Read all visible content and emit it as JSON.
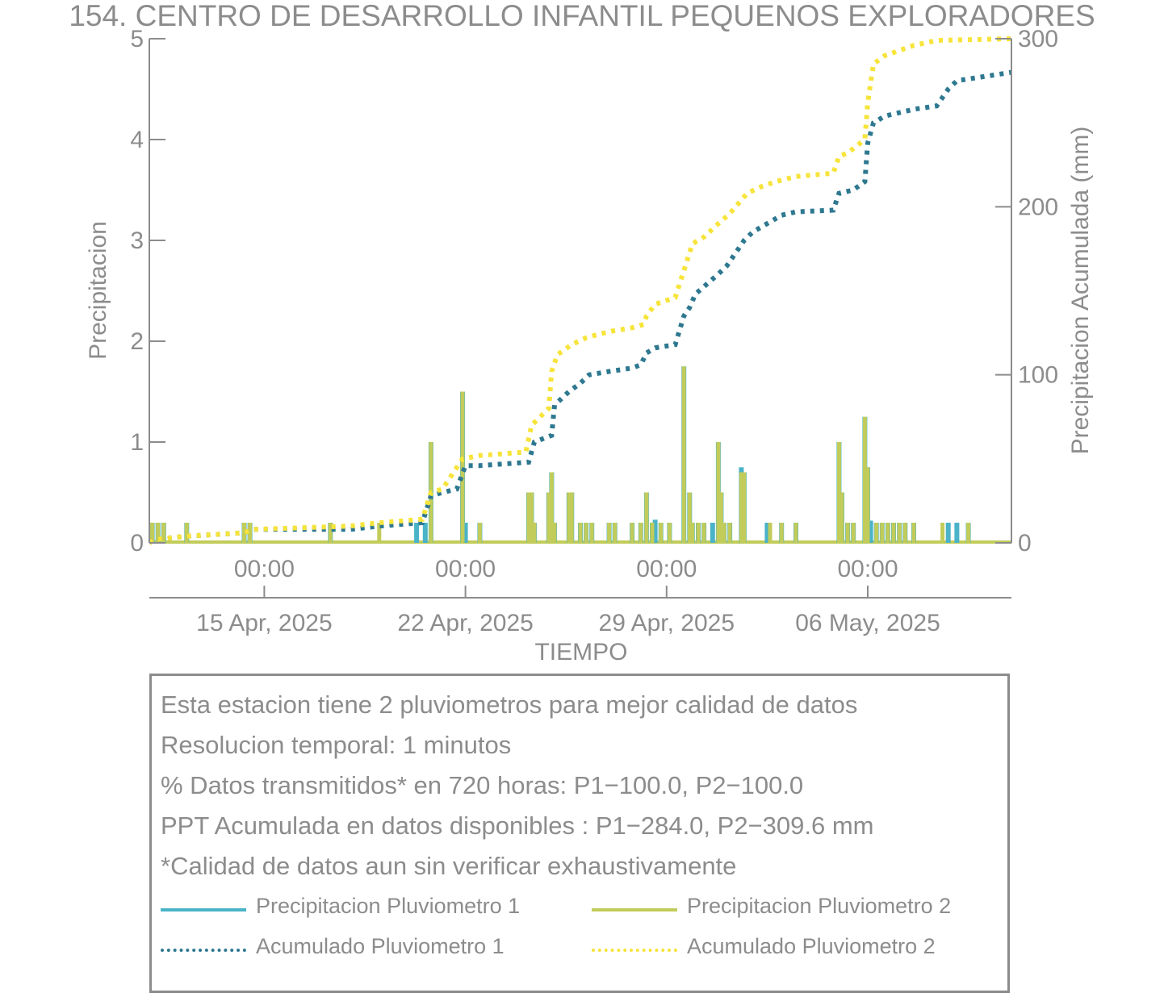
{
  "title": "154. CENTRO DE DESARROLLO INFANTIL PEQUENOS EXPLORADORES",
  "colors": {
    "p1_bar": "#4ab3c8",
    "p2_bar": "#c2cc5a",
    "p1_cum": "#2e7890",
    "p2_cum": "#f7e43a",
    "text": "#8c8c8c"
  },
  "chart_data": {
    "type": "bar",
    "title": "154. CENTRO DE DESARROLLO INFANTIL PEQUENOS EXPLORADORES",
    "xlabel": "TIEMPO",
    "ylabel": "Precipitacion",
    "y2label": "Precipitacion Acumulada (mm)",
    "ylim": [
      0,
      5
    ],
    "y2lim": [
      0,
      300
    ],
    "yticks": [
      "0",
      "1",
      "2",
      "3",
      "4",
      "5"
    ],
    "y2ticks": [
      "0",
      "100",
      "200",
      "300"
    ],
    "xlim_days": [
      0,
      30
    ],
    "time_tick_days": [
      4,
      11,
      18,
      25
    ],
    "time_ticks": [
      "00:00",
      "00:00",
      "00:00",
      "00:00"
    ],
    "date_ticks": [
      "15 Apr, 2025",
      "22 Apr, 2025",
      "29 Apr, 2025",
      "06 May, 2025"
    ],
    "grid": false,
    "series": [
      {
        "name": "Precipitacion Pluviometro 1",
        "kind": "bar",
        "axis": "left",
        "points": [
          [
            0.1,
            0.2
          ],
          [
            0.3,
            0.2
          ],
          [
            0.5,
            0.2
          ],
          [
            1.3,
            0.2
          ],
          [
            3.3,
            0.2
          ],
          [
            3.5,
            0.2
          ],
          [
            6.3,
            0.2
          ],
          [
            9.3,
            0.2
          ],
          [
            9.6,
            0.2
          ],
          [
            9.8,
            1.0
          ],
          [
            10.9,
            1.5
          ],
          [
            11.0,
            0.2
          ],
          [
            11.5,
            0.2
          ],
          [
            13.2,
            0.5
          ],
          [
            13.3,
            0.5
          ],
          [
            13.4,
            0.2
          ],
          [
            13.9,
            0.5
          ],
          [
            14.0,
            0.7
          ],
          [
            14.1,
            0.2
          ],
          [
            14.6,
            0.5
          ],
          [
            14.7,
            0.5
          ],
          [
            15.0,
            0.2
          ],
          [
            15.2,
            0.2
          ],
          [
            15.4,
            0.2
          ],
          [
            16.0,
            0.2
          ],
          [
            16.2,
            0.2
          ],
          [
            16.8,
            0.2
          ],
          [
            17.1,
            0.2
          ],
          [
            17.3,
            0.5
          ],
          [
            17.5,
            0.2
          ],
          [
            17.6,
            0.23
          ],
          [
            17.8,
            0.2
          ],
          [
            18.1,
            0.2
          ],
          [
            18.6,
            1.75
          ],
          [
            18.8,
            0.5
          ],
          [
            18.9,
            0.2
          ],
          [
            19.1,
            0.2
          ],
          [
            19.3,
            0.2
          ],
          [
            19.6,
            0.2
          ],
          [
            19.8,
            1.0
          ],
          [
            19.9,
            0.5
          ],
          [
            20.0,
            0.2
          ],
          [
            20.2,
            0.2
          ],
          [
            20.6,
            0.75
          ],
          [
            20.7,
            0.7
          ],
          [
            21.5,
            0.2
          ],
          [
            22.0,
            0.2
          ],
          [
            22.5,
            0.2
          ],
          [
            24.0,
            1.0
          ],
          [
            24.1,
            0.5
          ],
          [
            24.3,
            0.2
          ],
          [
            24.5,
            0.2
          ],
          [
            24.9,
            1.25
          ],
          [
            25.0,
            0.75
          ],
          [
            25.1,
            0.22
          ],
          [
            25.3,
            0.2
          ],
          [
            25.5,
            0.2
          ],
          [
            25.7,
            0.2
          ],
          [
            25.9,
            0.2
          ],
          [
            26.1,
            0.2
          ],
          [
            26.3,
            0.2
          ],
          [
            26.6,
            0.2
          ],
          [
            27.8,
            0.2
          ],
          [
            28.1,
            0.2
          ],
          [
            28.5,
            0.2
          ]
        ]
      },
      {
        "name": "Precipitacion Pluviometro 2",
        "kind": "bar",
        "axis": "left",
        "points": [
          [
            0.1,
            0.2
          ],
          [
            0.3,
            0.2
          ],
          [
            0.5,
            0.2
          ],
          [
            1.3,
            0.2
          ],
          [
            3.3,
            0.2
          ],
          [
            3.5,
            0.2
          ],
          [
            6.3,
            0.2
          ],
          [
            8.0,
            0.2
          ],
          [
            9.8,
            1.0
          ],
          [
            10.9,
            1.5
          ],
          [
            11.5,
            0.2
          ],
          [
            13.2,
            0.5
          ],
          [
            13.3,
            0.5
          ],
          [
            13.4,
            0.2
          ],
          [
            13.9,
            0.5
          ],
          [
            14.0,
            0.7
          ],
          [
            14.1,
            0.2
          ],
          [
            14.6,
            0.5
          ],
          [
            14.7,
            0.5
          ],
          [
            15.0,
            0.2
          ],
          [
            15.2,
            0.2
          ],
          [
            15.4,
            0.2
          ],
          [
            16.0,
            0.2
          ],
          [
            16.2,
            0.2
          ],
          [
            16.8,
            0.2
          ],
          [
            17.1,
            0.2
          ],
          [
            17.3,
            0.5
          ],
          [
            17.5,
            0.2
          ],
          [
            17.8,
            0.2
          ],
          [
            18.1,
            0.2
          ],
          [
            18.6,
            1.75
          ],
          [
            18.8,
            0.5
          ],
          [
            18.9,
            0.2
          ],
          [
            19.1,
            0.2
          ],
          [
            19.3,
            0.2
          ],
          [
            19.8,
            1.0
          ],
          [
            19.9,
            0.5
          ],
          [
            20.0,
            0.2
          ],
          [
            20.2,
            0.2
          ],
          [
            20.6,
            0.7
          ],
          [
            20.7,
            0.7
          ],
          [
            21.6,
            0.2
          ],
          [
            22.0,
            0.2
          ],
          [
            22.5,
            0.2
          ],
          [
            24.0,
            1.0
          ],
          [
            24.1,
            0.5
          ],
          [
            24.3,
            0.2
          ],
          [
            24.5,
            0.2
          ],
          [
            24.9,
            1.25
          ],
          [
            25.0,
            0.75
          ],
          [
            25.3,
            0.2
          ],
          [
            25.5,
            0.2
          ],
          [
            25.7,
            0.2
          ],
          [
            25.9,
            0.2
          ],
          [
            26.1,
            0.2
          ],
          [
            26.3,
            0.2
          ],
          [
            26.6,
            0.2
          ],
          [
            27.6,
            0.2
          ],
          [
            28.5,
            0.2
          ]
        ]
      },
      {
        "name": "Acumulado Pluviometro 1",
        "kind": "cumulative",
        "axis": "right",
        "points": [
          [
            0,
            0
          ],
          [
            0.2,
            2
          ],
          [
            1.3,
            4
          ],
          [
            3.3,
            6
          ],
          [
            3.6,
            8
          ],
          [
            7.0,
            8
          ],
          [
            8.0,
            10
          ],
          [
            9.5,
            12
          ],
          [
            9.8,
            28
          ],
          [
            10.2,
            30
          ],
          [
            10.7,
            32
          ],
          [
            11.0,
            46
          ],
          [
            11.5,
            46
          ],
          [
            13.2,
            48
          ],
          [
            13.4,
            60
          ],
          [
            14.0,
            64
          ],
          [
            14.1,
            82
          ],
          [
            14.6,
            90
          ],
          [
            15.0,
            95
          ],
          [
            15.3,
            100
          ],
          [
            16.0,
            102
          ],
          [
            16.8,
            104
          ],
          [
            17.1,
            106
          ],
          [
            17.3,
            113
          ],
          [
            17.6,
            116
          ],
          [
            18.3,
            118
          ],
          [
            18.6,
            135
          ],
          [
            18.8,
            140
          ],
          [
            19.0,
            148
          ],
          [
            19.8,
            160
          ],
          [
            20.1,
            165
          ],
          [
            20.7,
            180
          ],
          [
            21.0,
            185
          ],
          [
            21.5,
            190
          ],
          [
            22.0,
            195
          ],
          [
            22.5,
            197
          ],
          [
            23.8,
            198
          ],
          [
            24.0,
            208
          ],
          [
            24.5,
            210
          ],
          [
            24.9,
            215
          ],
          [
            25.0,
            238
          ],
          [
            25.2,
            250
          ],
          [
            25.6,
            254
          ],
          [
            26.1,
            256
          ],
          [
            26.6,
            258
          ],
          [
            27.4,
            260
          ],
          [
            27.8,
            270
          ],
          [
            28.1,
            275
          ],
          [
            30.0,
            280
          ]
        ]
      },
      {
        "name": "Acumulado Pluviometro 2",
        "kind": "cumulative",
        "axis": "right",
        "points": [
          [
            0,
            0
          ],
          [
            0.2,
            2
          ],
          [
            1.3,
            4
          ],
          [
            3.3,
            6
          ],
          [
            3.6,
            8
          ],
          [
            7.0,
            10
          ],
          [
            8.0,
            12
          ],
          [
            9.5,
            14
          ],
          [
            9.8,
            30
          ],
          [
            10.2,
            32
          ],
          [
            10.9,
            50
          ],
          [
            11.5,
            52
          ],
          [
            13.1,
            54
          ],
          [
            13.3,
            70
          ],
          [
            13.9,
            80
          ],
          [
            14.0,
            102
          ],
          [
            14.2,
            112
          ],
          [
            14.7,
            118
          ],
          [
            15.2,
            122
          ],
          [
            15.6,
            124
          ],
          [
            16.1,
            126
          ],
          [
            16.8,
            128
          ],
          [
            17.2,
            130
          ],
          [
            17.3,
            135
          ],
          [
            17.6,
            142
          ],
          [
            18.3,
            146
          ],
          [
            18.6,
            162
          ],
          [
            18.9,
            178
          ],
          [
            19.3,
            182
          ],
          [
            19.8,
            190
          ],
          [
            20.2,
            196
          ],
          [
            20.8,
            208
          ],
          [
            21.3,
            212
          ],
          [
            21.8,
            215
          ],
          [
            22.5,
            218
          ],
          [
            23.8,
            220
          ],
          [
            24.0,
            230
          ],
          [
            24.3,
            232
          ],
          [
            24.9,
            240
          ],
          [
            25.0,
            262
          ],
          [
            25.2,
            285
          ],
          [
            25.6,
            290
          ],
          [
            26.1,
            293
          ],
          [
            26.6,
            296
          ],
          [
            27.4,
            299
          ],
          [
            30.0,
            300
          ]
        ]
      }
    ]
  },
  "info": {
    "lines": [
      "Esta estacion tiene 2 pluviometros para mejor calidad de datos",
      "Resolucion temporal: 1 minutos",
      "% Datos transmitidos* en 720 horas: P1−100.0, P2−100.0",
      "PPT Acumulada en datos disponibles : P1−284.0, P2−309.6 mm",
      "*Calidad de datos aun sin verificar exhaustivamente"
    ]
  },
  "legend": [
    {
      "label": "Precipitacion Pluviometro 1",
      "style": "solid",
      "color": "#4ab3c8"
    },
    {
      "label": "Precipitacion Pluviometro 2",
      "style": "solid",
      "color": "#c2cc5a"
    },
    {
      "label": "Acumulado Pluviometro 1",
      "style": "dotted",
      "color": "#2e7890"
    },
    {
      "label": "Acumulado Pluviometro 2",
      "style": "dotted",
      "color": "#f7e43a"
    }
  ]
}
